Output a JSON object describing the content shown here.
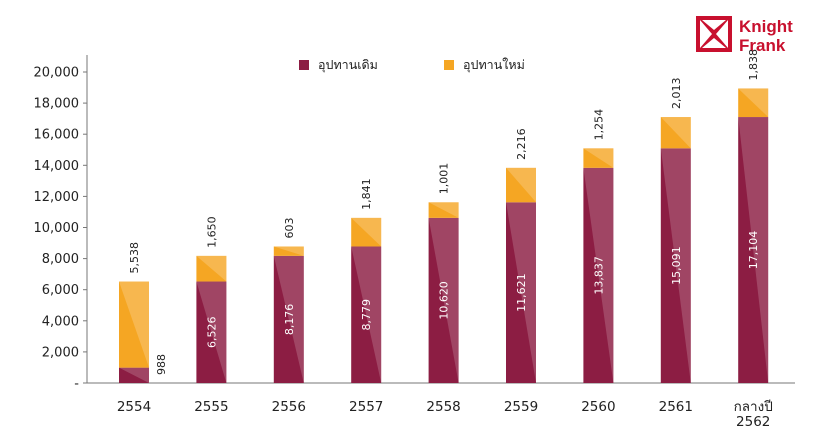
{
  "brand": {
    "line1": "Knight",
    "line2": "Frank",
    "color": "#c8102e"
  },
  "chart_data": {
    "type": "bar",
    "stacked": true,
    "categories": [
      "2554",
      "2555",
      "2556",
      "2557",
      "2558",
      "2559",
      "2560",
      "2561",
      "กลางปี 2562"
    ],
    "series": [
      {
        "name": "อุปทานเดิม",
        "color": "#8c1d43",
        "values": [
          988,
          6526,
          8176,
          8779,
          10620,
          11621,
          13837,
          15091,
          17104
        ],
        "labels": [
          "988",
          "6,526",
          "8,176",
          "8,779",
          "10,620",
          "11,621",
          "13,837",
          "15,091",
          "17,104"
        ]
      },
      {
        "name": "อุปทานใหม่",
        "color": "#f5a623",
        "values": [
          5538,
          1650,
          603,
          1841,
          1001,
          2216,
          1254,
          2013,
          1838
        ],
        "labels": [
          "5,538",
          "1,650",
          "603",
          "1,841",
          "1,001",
          "2,216",
          "1,254",
          "2,013",
          "1,838"
        ]
      }
    ],
    "yticks": [
      "-",
      "2,000",
      "4,000",
      "6,000",
      "8,000",
      "10,000",
      "12,000",
      "14,000",
      "16,000",
      "18,000",
      "20,000"
    ],
    "ylim": [
      0,
      20000
    ],
    "legend_position": "top-center",
    "grid": false
  }
}
